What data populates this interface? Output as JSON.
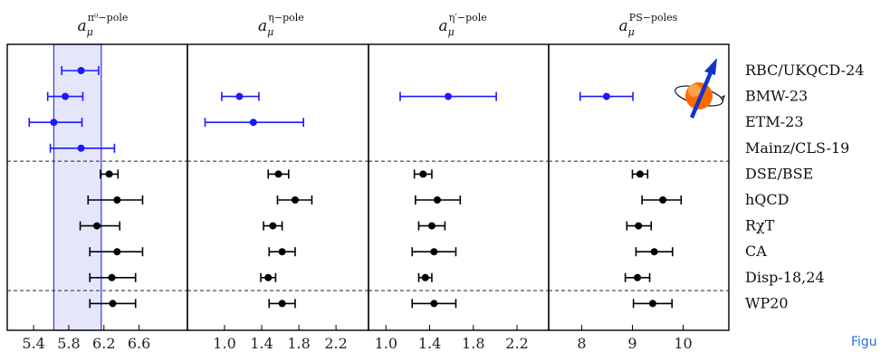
{
  "caption_fragment": "Figu",
  "chart_data": {
    "type": "scatter",
    "subtype": "forest-plot with horizontal error bars",
    "rows": [
      "RBC/UKQCD-24",
      "BMW-23",
      "ETM-23",
      "Mainz/CLS-19",
      "DSE/BSE",
      "hQCD",
      "RχT",
      "CA",
      "Disp-18,24",
      "WP20"
    ],
    "group_separators_after_row": [
      3,
      8
    ],
    "colors": {
      "lattice": "#1a1aff",
      "phenomenology": "#000000",
      "band_fill": "#e6e6fa",
      "band_edge": "#3333ff"
    },
    "panels": [
      {
        "key": "pi0",
        "title": {
          "base": "a",
          "sub": "μ",
          "sup": "π⁰−pole"
        },
        "xlim": [
          5.1,
          7.15
        ],
        "ticks": [
          5.4,
          5.8,
          6.2,
          6.6
        ],
        "tick_labels": [
          "5.4",
          "5.8",
          "6.2",
          "6.6"
        ],
        "band": [
          5.63,
          6.17
        ],
        "points": [
          {
            "row": 0,
            "value": 5.94,
            "lo": 5.72,
            "hi": 6.14,
            "group": "lattice"
          },
          {
            "row": 1,
            "value": 5.76,
            "lo": 5.56,
            "hi": 5.96,
            "group": "lattice"
          },
          {
            "row": 2,
            "value": 5.63,
            "lo": 5.35,
            "hi": 5.95,
            "group": "lattice"
          },
          {
            "row": 3,
            "value": 5.94,
            "lo": 5.59,
            "hi": 6.32,
            "group": "lattice"
          },
          {
            "row": 4,
            "value": 6.26,
            "lo": 6.16,
            "hi": 6.36,
            "group": "phenomenology"
          },
          {
            "row": 5,
            "value": 6.35,
            "lo": 6.02,
            "hi": 6.64,
            "group": "phenomenology"
          },
          {
            "row": 6,
            "value": 6.12,
            "lo": 5.93,
            "hi": 6.38,
            "group": "phenomenology"
          },
          {
            "row": 7,
            "value": 6.35,
            "lo": 6.04,
            "hi": 6.64,
            "group": "phenomenology"
          },
          {
            "row": 8,
            "value": 6.29,
            "lo": 6.04,
            "hi": 6.56,
            "group": "phenomenology"
          },
          {
            "row": 9,
            "value": 6.3,
            "lo": 6.04,
            "hi": 6.56,
            "group": "phenomenology"
          }
        ]
      },
      {
        "key": "eta",
        "title": {
          "base": "a",
          "sub": "μ",
          "sup": "η−pole"
        },
        "xlim": [
          0.6,
          2.55
        ],
        "ticks": [
          1.0,
          1.4,
          1.8,
          2.2
        ],
        "tick_labels": [
          "1.0",
          "1.4",
          "1.8",
          "2.2"
        ],
        "points": [
          {
            "row": 1,
            "value": 1.16,
            "lo": 0.97,
            "hi": 1.37,
            "group": "lattice"
          },
          {
            "row": 2,
            "value": 1.31,
            "lo": 0.79,
            "hi": 1.85,
            "group": "lattice"
          },
          {
            "row": 4,
            "value": 1.58,
            "lo": 1.47,
            "hi": 1.69,
            "group": "phenomenology"
          },
          {
            "row": 5,
            "value": 1.76,
            "lo": 1.57,
            "hi": 1.94,
            "group": "phenomenology"
          },
          {
            "row": 6,
            "value": 1.52,
            "lo": 1.42,
            "hi": 1.62,
            "group": "phenomenology"
          },
          {
            "row": 7,
            "value": 1.62,
            "lo": 1.48,
            "hi": 1.76,
            "group": "phenomenology"
          },
          {
            "row": 8,
            "value": 1.47,
            "lo": 1.39,
            "hi": 1.55,
            "group": "phenomenology"
          },
          {
            "row": 9,
            "value": 1.62,
            "lo": 1.48,
            "hi": 1.76,
            "group": "phenomenology"
          }
        ]
      },
      {
        "key": "etaprime",
        "title": {
          "base": "a",
          "sub": "μ",
          "sup": "η′−pole"
        },
        "xlim": [
          0.84,
          2.49
        ],
        "ticks": [
          1.0,
          1.4,
          1.8,
          2.2
        ],
        "tick_labels": [
          "1.0",
          "1.4",
          "1.8",
          "2.2"
        ],
        "points": [
          {
            "row": 1,
            "value": 1.57,
            "lo": 1.13,
            "hi": 2.01,
            "group": "lattice"
          },
          {
            "row": 4,
            "value": 1.34,
            "lo": 1.26,
            "hi": 1.42,
            "group": "phenomenology"
          },
          {
            "row": 5,
            "value": 1.47,
            "lo": 1.27,
            "hi": 1.68,
            "group": "phenomenology"
          },
          {
            "row": 6,
            "value": 1.42,
            "lo": 1.3,
            "hi": 1.54,
            "group": "phenomenology"
          },
          {
            "row": 7,
            "value": 1.44,
            "lo": 1.24,
            "hi": 1.64,
            "group": "phenomenology"
          },
          {
            "row": 8,
            "value": 1.36,
            "lo": 1.3,
            "hi": 1.42,
            "group": "phenomenology"
          },
          {
            "row": 9,
            "value": 1.44,
            "lo": 1.24,
            "hi": 1.64,
            "group": "phenomenology"
          }
        ]
      },
      {
        "key": "ps",
        "title": {
          "base": "a",
          "sub": "μ",
          "sup": "PS−poles"
        },
        "xlim": [
          7.35,
          10.9
        ],
        "ticks": [
          8,
          9,
          10
        ],
        "tick_labels": [
          "8",
          "9",
          "10"
        ],
        "points": [
          {
            "row": 1,
            "value": 8.49,
            "lo": 7.97,
            "hi": 9.01,
            "group": "lattice"
          },
          {
            "row": 4,
            "value": 9.15,
            "lo": 9.0,
            "hi": 9.3,
            "group": "phenomenology"
          },
          {
            "row": 5,
            "value": 9.6,
            "lo": 9.19,
            "hi": 9.96,
            "group": "phenomenology"
          },
          {
            "row": 6,
            "value": 9.12,
            "lo": 8.89,
            "hi": 9.37,
            "group": "phenomenology"
          },
          {
            "row": 7,
            "value": 9.43,
            "lo": 9.07,
            "hi": 9.79,
            "group": "phenomenology"
          },
          {
            "row": 8,
            "value": 9.1,
            "lo": 8.86,
            "hi": 9.34,
            "group": "phenomenology"
          },
          {
            "row": 9,
            "value": 9.4,
            "lo": 9.02,
            "hi": 9.78,
            "group": "phenomenology"
          }
        ]
      }
    ]
  }
}
